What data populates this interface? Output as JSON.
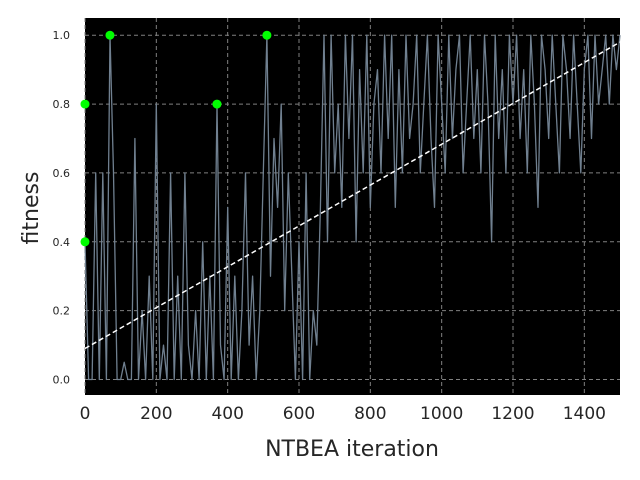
{
  "chart_data": {
    "type": "line",
    "title": "",
    "xlabel": "NTBEA iteration",
    "ylabel": "fitness",
    "xlim": [
      0,
      1500
    ],
    "ylim": [
      -0.045,
      1.05
    ],
    "x_ticks": [
      0,
      200,
      400,
      600,
      800,
      1000,
      1200,
      1400
    ],
    "y_ticks": [
      0.0,
      0.2,
      0.4,
      0.6,
      0.8,
      1.0
    ],
    "x_tick_labels": [
      "0",
      "200",
      "400",
      "600",
      "800",
      "1000",
      "1200",
      "1400"
    ],
    "y_tick_labels": [
      "0.0",
      "0.2",
      "0.4",
      "0.6",
      "0.8",
      "1.0"
    ],
    "grid": true,
    "background": "#000000",
    "colors": {
      "series": "#708090",
      "trend": "#ffffff",
      "best": "#00ff00",
      "grid": "#808080"
    },
    "series": [
      {
        "style": "line",
        "x": [
          0,
          10,
          20,
          30,
          40,
          50,
          60,
          70,
          80,
          90,
          100,
          110,
          120,
          130,
          140,
          150,
          160,
          170,
          180,
          190,
          200,
          210,
          220,
          230,
          240,
          250,
          260,
          270,
          280,
          290,
          300,
          310,
          320,
          330,
          340,
          350,
          360,
          370,
          380,
          390,
          400,
          410,
          420,
          430,
          440,
          450,
          460,
          470,
          480,
          490,
          500,
          510,
          520,
          530,
          540,
          550,
          560,
          570,
          580,
          590,
          600,
          610,
          620,
          630,
          640,
          650,
          660,
          670,
          680,
          690,
          700,
          710,
          720,
          730,
          740,
          750,
          760,
          770,
          780,
          790,
          800,
          810,
          820,
          830,
          840,
          850,
          860,
          870,
          880,
          890,
          900,
          910,
          920,
          930,
          940,
          950,
          960,
          970,
          980,
          990,
          1000,
          1010,
          1020,
          1030,
          1040,
          1050,
          1060,
          1070,
          1080,
          1090,
          1100,
          1110,
          1120,
          1130,
          1140,
          1150,
          1160,
          1170,
          1180,
          1190,
          1200,
          1210,
          1220,
          1230,
          1240,
          1250,
          1260,
          1270,
          1280,
          1290,
          1300,
          1310,
          1320,
          1330,
          1340,
          1350,
          1360,
          1370,
          1380,
          1390,
          1400,
          1410,
          1420,
          1430,
          1440,
          1450,
          1460,
          1470,
          1480,
          1490,
          1500
        ],
        "y": [
          0.4,
          0.0,
          0.0,
          0.6,
          0.0,
          0.6,
          0.0,
          1.0,
          0.6,
          0.0,
          0.0,
          0.05,
          0.0,
          0.0,
          0.7,
          0.0,
          0.2,
          0.0,
          0.3,
          0.0,
          0.8,
          0.0,
          0.1,
          0.0,
          0.6,
          0.0,
          0.3,
          0.0,
          0.6,
          0.1,
          0.0,
          0.2,
          0.0,
          0.4,
          0.0,
          0.3,
          0.0,
          0.8,
          0.1,
          0.0,
          0.5,
          0.0,
          0.3,
          0.0,
          0.2,
          0.6,
          0.1,
          0.3,
          0.0,
          0.2,
          0.6,
          1.0,
          0.3,
          0.7,
          0.5,
          0.8,
          0.2,
          0.6,
          0.3,
          0.0,
          0.4,
          0.0,
          0.6,
          0.0,
          0.2,
          0.1,
          0.5,
          1.0,
          0.4,
          1.0,
          0.6,
          0.8,
          0.5,
          1.0,
          0.7,
          1.0,
          0.4,
          0.9,
          0.6,
          1.0,
          0.5,
          0.8,
          0.9,
          0.6,
          1.0,
          0.7,
          1.0,
          0.5,
          0.9,
          0.6,
          1.0,
          0.7,
          0.8,
          1.0,
          0.6,
          0.8,
          1.0,
          0.7,
          0.5,
          1.0,
          0.8,
          0.6,
          1.0,
          0.7,
          0.9,
          1.0,
          0.6,
          0.8,
          1.0,
          0.7,
          0.9,
          0.6,
          1.0,
          0.8,
          0.4,
          1.0,
          0.7,
          0.9,
          0.6,
          1.0,
          0.8,
          1.0,
          0.7,
          0.9,
          0.6,
          1.0,
          0.8,
          0.5,
          1.0,
          0.9,
          0.7,
          1.0,
          0.8,
          0.6,
          1.0,
          0.9,
          0.7,
          1.0,
          0.8,
          0.6,
          0.9,
          1.0,
          0.7,
          1.0,
          0.8,
          0.9,
          1.0,
          0.8,
          1.0,
          0.9,
          1.0
        ]
      },
      {
        "style": "dashed-line",
        "x": [
          0,
          1500
        ],
        "y": [
          0.09,
          0.98
        ]
      },
      {
        "style": "scatter",
        "x": [
          0,
          0,
          70,
          370,
          510
        ],
        "y": [
          0.4,
          0.8,
          1.0,
          0.8,
          1.0
        ]
      }
    ]
  }
}
